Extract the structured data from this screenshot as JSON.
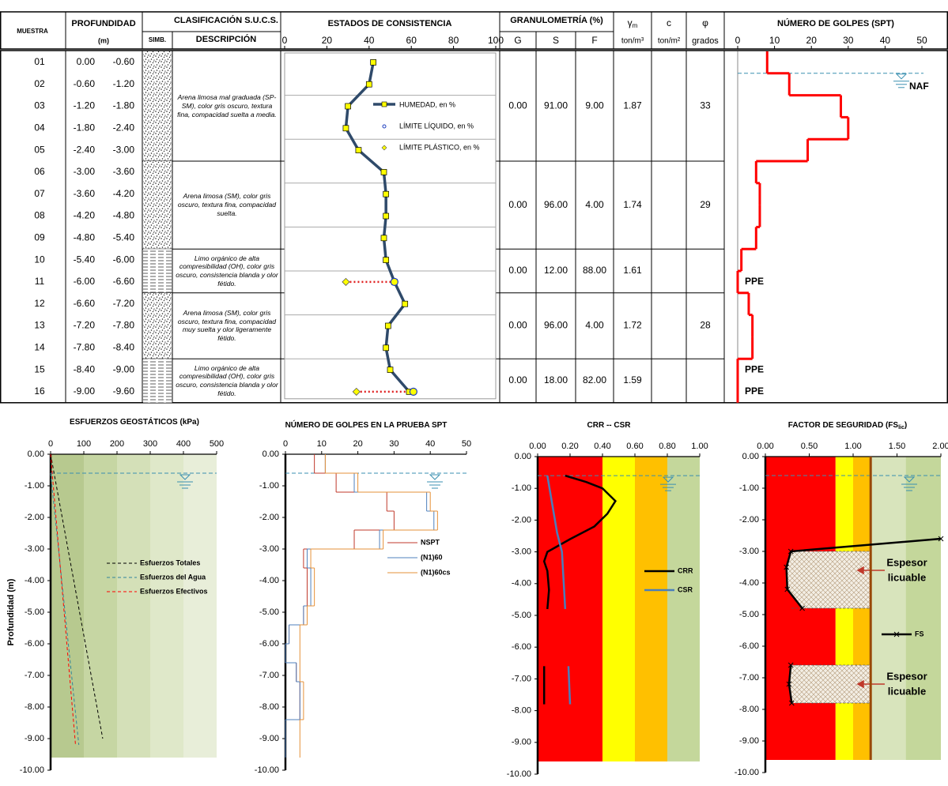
{
  "header": {
    "muestra": "MUESTRA",
    "profundidad": "PROFUNDIDAD",
    "unit": "(m)",
    "clasificacion": "CLASIFICACIÓN S.U.C.S.",
    "simb": "SIMB.",
    "descripcion": "DESCRIPCIÓN",
    "estados": "ESTADOS DE CONSISTENCIA",
    "granulometria": "GRANULOMETRÍA (%)",
    "g": "G",
    "s": "S",
    "f": "F",
    "gamma": "γ",
    "gamma_sub": "m",
    "gamma_unit": "ton/m³",
    "c": "c",
    "c_unit": "ton/m²",
    "phi": "φ",
    "phi_unit": "grados",
    "spt": "NÚMERO DE GOLPES (SPT)"
  },
  "samples": [
    {
      "id": "01",
      "from": "0.00",
      "to": "-0.60"
    },
    {
      "id": "02",
      "from": "-0.60",
      "to": "-1.20"
    },
    {
      "id": "03",
      "from": "-1.20",
      "to": "-1.80"
    },
    {
      "id": "04",
      "from": "-1.80",
      "to": "-2.40"
    },
    {
      "id": "05",
      "from": "-2.40",
      "to": "-3.00"
    },
    {
      "id": "06",
      "from": "-3.00",
      "to": "-3.60"
    },
    {
      "id": "07",
      "from": "-3.60",
      "to": "-4.20"
    },
    {
      "id": "08",
      "from": "-4.20",
      "to": "-4.80"
    },
    {
      "id": "09",
      "from": "-4.80",
      "to": "-5.40"
    },
    {
      "id": "10",
      "from": "-5.40",
      "to": "-6.00"
    },
    {
      "id": "11",
      "from": "-6.00",
      "to": "-6.60"
    },
    {
      "id": "12",
      "from": "-6.60",
      "to": "-7.20"
    },
    {
      "id": "13",
      "from": "-7.20",
      "to": "-7.80"
    },
    {
      "id": "14",
      "from": "-7.80",
      "to": "-8.40"
    },
    {
      "id": "15",
      "from": "-8.40",
      "to": "-9.00"
    },
    {
      "id": "16",
      "from": "-9.00",
      "to": "-9.60"
    }
  ],
  "strata": [
    {
      "description": "Arena limosa mal graduada (SP-SM), color gris oscuro, textura fina, compacidad suelta a media.",
      "g": "0.00",
      "s": "91.00",
      "f": "9.00",
      "gamma": "1.87",
      "phi": "33"
    },
    {
      "description": "Arena limosa (SM), color gris oscuro, textura fina, compacidad suelta.",
      "g": "0.00",
      "s": "96.00",
      "f": "4.00",
      "gamma": "1.74",
      "phi": "29"
    },
    {
      "description": "Limo orgánico de alta compresibilidad (OH), color gris oscuro, consistencia blanda y olor fétido.",
      "g": "0.00",
      "s": "12.00",
      "f": "88.00",
      "gamma": "1.61"
    },
    {
      "description": "Arena limosa (SM), color gris oscuro, textura fina, compacidad muy suelta y olor ligeramente fétido.",
      "g": "0.00",
      "s": "96.00",
      "f": "4.00",
      "gamma": "1.72",
      "phi": "28"
    },
    {
      "description": "Limo orgánico de alta compresibilidad (OH), color gris oscuro, consistencia blanda y olor fétido.",
      "g": "0.00",
      "s": "18.00",
      "f": "82.00",
      "gamma": "1.59"
    }
  ],
  "consistency": {
    "xlim": [
      0,
      100
    ],
    "xticks": [
      0,
      20,
      40,
      60,
      80,
      100
    ],
    "humidity": [
      42,
      40,
      30,
      29,
      35,
      47,
      48,
      48,
      47,
      48,
      52,
      57,
      49,
      48,
      50,
      59
    ],
    "liquid_limit": [
      null,
      null,
      null,
      null,
      null,
      null,
      null,
      null,
      null,
      null,
      52,
      null,
      null,
      null,
      null,
      61
    ],
    "plastic_limit": [
      null,
      null,
      null,
      null,
      null,
      null,
      null,
      null,
      null,
      null,
      29,
      null,
      null,
      null,
      null,
      34
    ],
    "legend": [
      "HUMEDAD, en %",
      "LÍMITE LÍQUIDO, en %",
      "LÍMITE PLÁSTICO, en %"
    ],
    "colors": {
      "humidity": "#2f4a6a",
      "liquid_limit": "#1f3fbf",
      "plastic_limit": "#ffff00"
    }
  },
  "spt": {
    "xlim": [
      0,
      50
    ],
    "xticks": [
      0,
      10,
      20,
      30,
      40,
      50
    ],
    "values": [
      8,
      14,
      28,
      30,
      19,
      5,
      6,
      6,
      5,
      1,
      0,
      3,
      4,
      4,
      0,
      0
    ],
    "labels": [
      null,
      null,
      null,
      null,
      null,
      null,
      null,
      null,
      null,
      null,
      "PPE",
      null,
      null,
      null,
      "PPE",
      "PPE"
    ],
    "naf": "NAF",
    "color": "#ff0000"
  },
  "water_table": -0.6,
  "depth_axis": {
    "label": "Profundidad (m)",
    "lim": [
      0,
      -10
    ],
    "ticks": [
      {
        "value": 0,
        "label": "0.00"
      },
      {
        "value": -1,
        "label": "-1.00"
      },
      {
        "value": -2,
        "label": "-2.00"
      },
      {
        "value": -3,
        "label": "-3.00"
      },
      {
        "value": -4,
        "label": "-4.00"
      },
      {
        "value": -5,
        "label": "-5.00"
      },
      {
        "value": -6,
        "label": "-6.00"
      },
      {
        "value": -7,
        "label": "-7.00"
      },
      {
        "value": -8,
        "label": "-8.00"
      },
      {
        "value": -9,
        "label": "-9.00"
      },
      {
        "value": -10,
        "label": "-10.00"
      }
    ]
  },
  "charts": [
    {
      "type": "line",
      "title": "ESFUERZOS  GEOSTÁTICOS  (kPa)",
      "xlim": [
        0,
        500
      ],
      "xticks": [
        0,
        100,
        200,
        300,
        400,
        500
      ],
      "bands_depth": [
        0,
        -9.6
      ],
      "bands": [
        {
          "x": [
            0,
            100
          ],
          "color": "#b7c98f"
        },
        {
          "x": [
            100,
            200
          ],
          "color": "#c6d6a3"
        },
        {
          "x": [
            200,
            300
          ],
          "color": "#d4e0b8"
        },
        {
          "x": [
            300,
            400
          ],
          "color": "#dfe8c9"
        },
        {
          "x": [
            400,
            500
          ],
          "color": "#e8eed9"
        }
      ],
      "series": [
        {
          "name": "Esfuerzos Totales",
          "color": "#000000",
          "dash": true,
          "x": [
            0,
            157
          ],
          "y": [
            0,
            -9
          ]
        },
        {
          "name": "Esfuerzos del Agua",
          "color": "#31849b",
          "dash": true,
          "x": [
            0,
            85
          ],
          "y": [
            -0.6,
            -9.2
          ]
        },
        {
          "name": "Esfuerzos Efectivos",
          "color": "#ff0000",
          "dash": true,
          "x": [
            0,
            75
          ],
          "y": [
            0,
            -9.2
          ]
        }
      ]
    },
    {
      "type": "step",
      "title": "NÚMERO DE GOLPES EN LA PRUEBA SPT",
      "xlim": [
        0,
        50
      ],
      "xticks": [
        0,
        10,
        20,
        30,
        40,
        50
      ],
      "depths": [
        0,
        -0.6,
        -1.2,
        -1.8,
        -2.4,
        -3.0,
        -3.6,
        -4.2,
        -4.8,
        -5.4,
        -6.0,
        -6.6,
        -7.2,
        -7.8,
        -8.4,
        -9.0,
        -9.6
      ],
      "series": [
        {
          "name": "NSPT",
          "color": "#c0392b",
          "values": [
            8,
            14,
            28,
            30,
            19,
            5,
            6,
            6,
            5,
            1,
            0,
            3,
            4,
            4,
            0,
            0
          ]
        },
        {
          "name": "(N1)60",
          "color": "#4f81bd",
          "values": [
            11,
            19,
            39,
            41,
            26,
            6,
            7,
            7,
            5,
            1,
            0,
            3,
            4,
            4,
            0,
            0
          ]
        },
        {
          "name": "(N1)60cs",
          "color": "#e69138",
          "values": [
            11,
            20,
            40,
            42,
            27,
            7,
            8,
            8,
            6,
            4,
            4,
            4,
            5,
            5,
            4,
            4
          ]
        }
      ]
    },
    {
      "type": "line",
      "title": "CRR -- CSR",
      "xlim": [
        0,
        1
      ],
      "xticks": [
        {
          "value": 0,
          "label": "0.00"
        },
        {
          "value": 0.2,
          "label": "0.20"
        },
        {
          "value": 0.4,
          "label": "0.40"
        },
        {
          "value": 0.6,
          "label": "0.60"
        },
        {
          "value": 0.8,
          "label": "0.80"
        },
        {
          "value": 1,
          "label": "1.00"
        }
      ],
      "bands_depth": [
        0,
        -9.6
      ],
      "bands": [
        {
          "x": [
            0,
            0.4
          ],
          "color": "#ff0000"
        },
        {
          "x": [
            0.4,
            0.6
          ],
          "color": "#ffff00"
        },
        {
          "x": [
            0.6,
            0.8
          ],
          "color": "#ffc000"
        },
        {
          "x": [
            0.8,
            1
          ],
          "color": "#c4d79b"
        }
      ],
      "series": [
        {
          "name": "CRR",
          "color": "#000000",
          "x": [
            0.17,
            0.3,
            0.4,
            0.48,
            0.43,
            0.35,
            0.2,
            0.06,
            0.04,
            0.06,
            0.07,
            0.06,
            null,
            0.04,
            0.04,
            0.04
          ],
          "y": [
            -0.6,
            -0.8,
            -1.0,
            -1.4,
            -1.8,
            -2.2,
            -2.6,
            -3.0,
            -3.3,
            -3.6,
            -4.2,
            -4.8,
            null,
            -6.6,
            -7.2,
            -7.8
          ]
        },
        {
          "name": "CSR",
          "color": "#4a7ebb",
          "x": [
            0.06,
            0.12,
            0.15,
            0.17,
            null,
            0.19,
            0.2
          ],
          "y": [
            -0.6,
            -2.4,
            -3.0,
            -4.8,
            null,
            -6.6,
            -7.8
          ]
        }
      ]
    },
    {
      "type": "line",
      "title": "FACTOR DE SEGURIDAD  (FS",
      "title_sub": "lic",
      "title_end": ")",
      "xlim": [
        0,
        2
      ],
      "xticks": [
        {
          "value": 0,
          "label": "0.00"
        },
        {
          "value": 0.5,
          "label": "0.50"
        },
        {
          "value": 1,
          "label": "1.00"
        },
        {
          "value": 1.5,
          "label": "1.50"
        },
        {
          "value": 2,
          "label": "2.00"
        }
      ],
      "bands_depth": [
        0,
        -9.6
      ],
      "bands": [
        {
          "x": [
            0,
            0.8
          ],
          "color": "#ff0000"
        },
        {
          "x": [
            0.8,
            1.0
          ],
          "color": "#ffff00"
        },
        {
          "x": [
            1.0,
            1.2
          ],
          "color": "#ffc000"
        },
        {
          "x": [
            1.2,
            1.6
          ],
          "color": "#d8e4bc"
        },
        {
          "x": [
            1.6,
            2.0
          ],
          "color": "#c4d79b"
        }
      ],
      "limit": {
        "value": 1.2,
        "color": "#984807"
      },
      "series": [
        {
          "name": "FS",
          "color": "#000000",
          "marker": "x",
          "x": [
            2.0,
            0.29,
            0.24,
            0.25,
            0.42,
            null,
            0.29,
            0.27,
            0.3
          ],
          "y": [
            -2.6,
            -3.0,
            -3.5,
            -4.2,
            -4.8,
            null,
            -6.6,
            -7.2,
            -7.8
          ]
        }
      ],
      "zones": [
        {
          "top": -3.0,
          "bottom": -4.8,
          "label": [
            "Espesor",
            "licuable"
          ],
          "color": "#c0392b"
        },
        {
          "top": -6.6,
          "bottom": -7.8,
          "label": [
            "Espesor",
            "licuable"
          ],
          "color": "#c0392b"
        }
      ]
    }
  ]
}
